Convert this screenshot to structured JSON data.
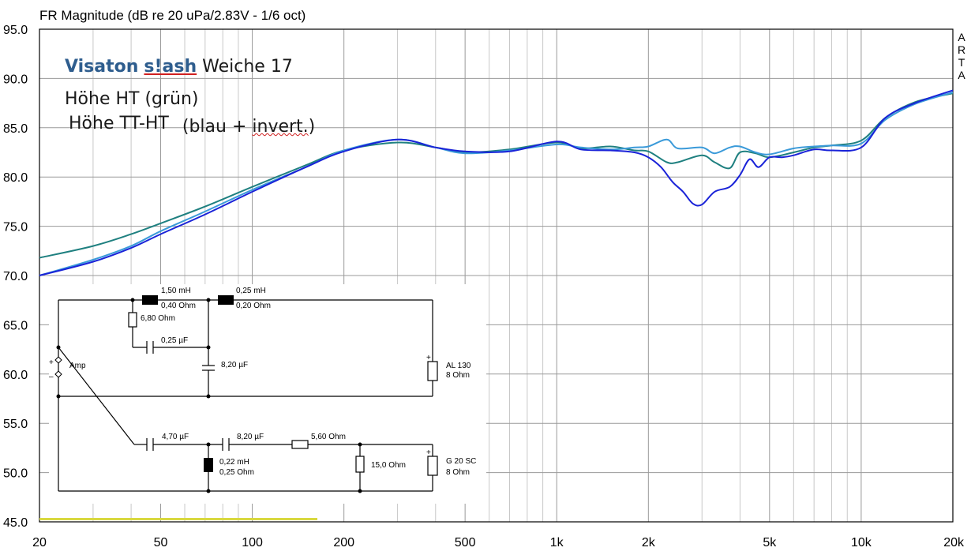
{
  "chart_data": {
    "type": "line",
    "title": "FR Magnitude (dB re 20 uPa/2.83V - 1/6 oct)",
    "side_label": "ARTA",
    "x_scale": "log",
    "xlim": [
      20,
      20000
    ],
    "ylim": [
      45,
      95
    ],
    "x_ticks": [
      {
        "value": 20,
        "label": "20"
      },
      {
        "value": 50,
        "label": "50"
      },
      {
        "value": 100,
        "label": "100"
      },
      {
        "value": 200,
        "label": "200"
      },
      {
        "value": 500,
        "label": "500"
      },
      {
        "value": 1000,
        "label": "1k"
      },
      {
        "value": 2000,
        "label": "2k"
      },
      {
        "value": 5000,
        "label": "5k"
      },
      {
        "value": 10000,
        "label": "10k"
      },
      {
        "value": 20000,
        "label": "20k"
      }
    ],
    "y_ticks": [
      {
        "value": 95,
        "label": "95.0"
      },
      {
        "value": 90,
        "label": "90.0"
      },
      {
        "value": 85,
        "label": "85.0"
      },
      {
        "value": 80,
        "label": "80.0"
      },
      {
        "value": 75,
        "label": "75.0"
      },
      {
        "value": 70,
        "label": "70.0"
      },
      {
        "value": 65,
        "label": "65.0"
      },
      {
        "value": 60,
        "label": "60.0"
      },
      {
        "value": 55,
        "label": "55.0"
      },
      {
        "value": 50,
        "label": "50.0"
      },
      {
        "value": 45,
        "label": "45.0"
      }
    ],
    "grid": true,
    "series": [
      {
        "color": "#1f8080",
        "x": [
          20,
          30,
          40,
          50,
          70,
          100,
          150,
          200,
          300,
          400,
          500,
          700,
          1000,
          1200,
          1500,
          1800,
          2000,
          2300,
          2500,
          3000,
          3300,
          3700,
          4000,
          4500,
          5000,
          6000,
          7000,
          8000,
          10000,
          12000,
          15000,
          20000
        ],
        "y": [
          71.8,
          73.0,
          74.2,
          75.3,
          77.0,
          79.0,
          81.2,
          82.7,
          83.5,
          83.0,
          82.5,
          82.8,
          83.5,
          82.9,
          83.1,
          82.7,
          82.6,
          81.5,
          81.5,
          82.2,
          81.5,
          80.9,
          82.5,
          82.4,
          82.0,
          82.5,
          83.0,
          83.2,
          83.7,
          86.0,
          87.6,
          88.5
        ]
      },
      {
        "color": "#3a9ad9",
        "x": [
          20,
          30,
          40,
          50,
          70,
          100,
          150,
          200,
          300,
          400,
          500,
          700,
          1000,
          1200,
          1500,
          1800,
          2000,
          2300,
          2500,
          3000,
          3300,
          3700,
          4000,
          4500,
          5000,
          6000,
          7000,
          8000,
          10000,
          12000,
          15000,
          20000
        ],
        "y": [
          70.0,
          71.6,
          73.0,
          74.5,
          76.5,
          78.7,
          81.0,
          82.7,
          83.8,
          83.0,
          82.4,
          82.7,
          83.3,
          83.0,
          82.8,
          83.0,
          83.1,
          83.8,
          82.9,
          83.0,
          82.4,
          83.0,
          83.1,
          82.5,
          82.3,
          82.9,
          83.1,
          83.2,
          83.4,
          85.8,
          87.4,
          88.6
        ]
      },
      {
        "color": "#1a23d8",
        "x": [
          20,
          30,
          40,
          50,
          70,
          100,
          150,
          200,
          300,
          400,
          500,
          700,
          1000,
          1200,
          1500,
          1800,
          2000,
          2200,
          2400,
          2600,
          2800,
          3000,
          3300,
          3700,
          4000,
          4300,
          4600,
          5000,
          5500,
          6000,
          7000,
          8000,
          10000,
          12000,
          15000,
          20000
        ],
        "y": [
          70.0,
          71.4,
          72.8,
          74.2,
          76.2,
          78.5,
          81.0,
          82.6,
          83.8,
          83.0,
          82.6,
          82.6,
          83.6,
          82.8,
          82.7,
          82.5,
          82.0,
          81.0,
          79.5,
          78.5,
          77.3,
          77.2,
          78.5,
          79.0,
          80.2,
          81.8,
          81.0,
          82.0,
          82.0,
          82.2,
          82.8,
          82.7,
          83.0,
          86.0,
          87.5,
          88.8
        ]
      }
    ],
    "annotations": {
      "line1_brand_a": "Visaton",
      "line1_brand_b": "s!ash",
      "line1_rest": "Weiche 17",
      "line2": "Höhe  HT  (grün)",
      "line3_a": "Höhe TT-HT",
      "line3_b": "(blau + ",
      "line3_c": "invert.",
      "line3_d": ")"
    },
    "schematic": {
      "l1": "1,50 mH",
      "l1_r": "0,40 Ohm",
      "r1": "6,80 Ohm",
      "c1": "0,25 µF",
      "l2": "0,25 mH",
      "l2_r": "0,20 Ohm",
      "c2": "8,20 µF",
      "tw_name": "AL 130",
      "tw_imp": "8 Ohm",
      "amp": "Amp",
      "plus": "+",
      "minus": "–",
      "c3": "4,70 µF",
      "c4": "8,20 µF",
      "r2": "5,60 Ohm",
      "l3": "0,22 mH",
      "l3_r": "0,25 Ohm",
      "r3": "15,0 Ohm",
      "wf_name": "G 20 SC",
      "wf_imp": "8 Ohm"
    }
  }
}
